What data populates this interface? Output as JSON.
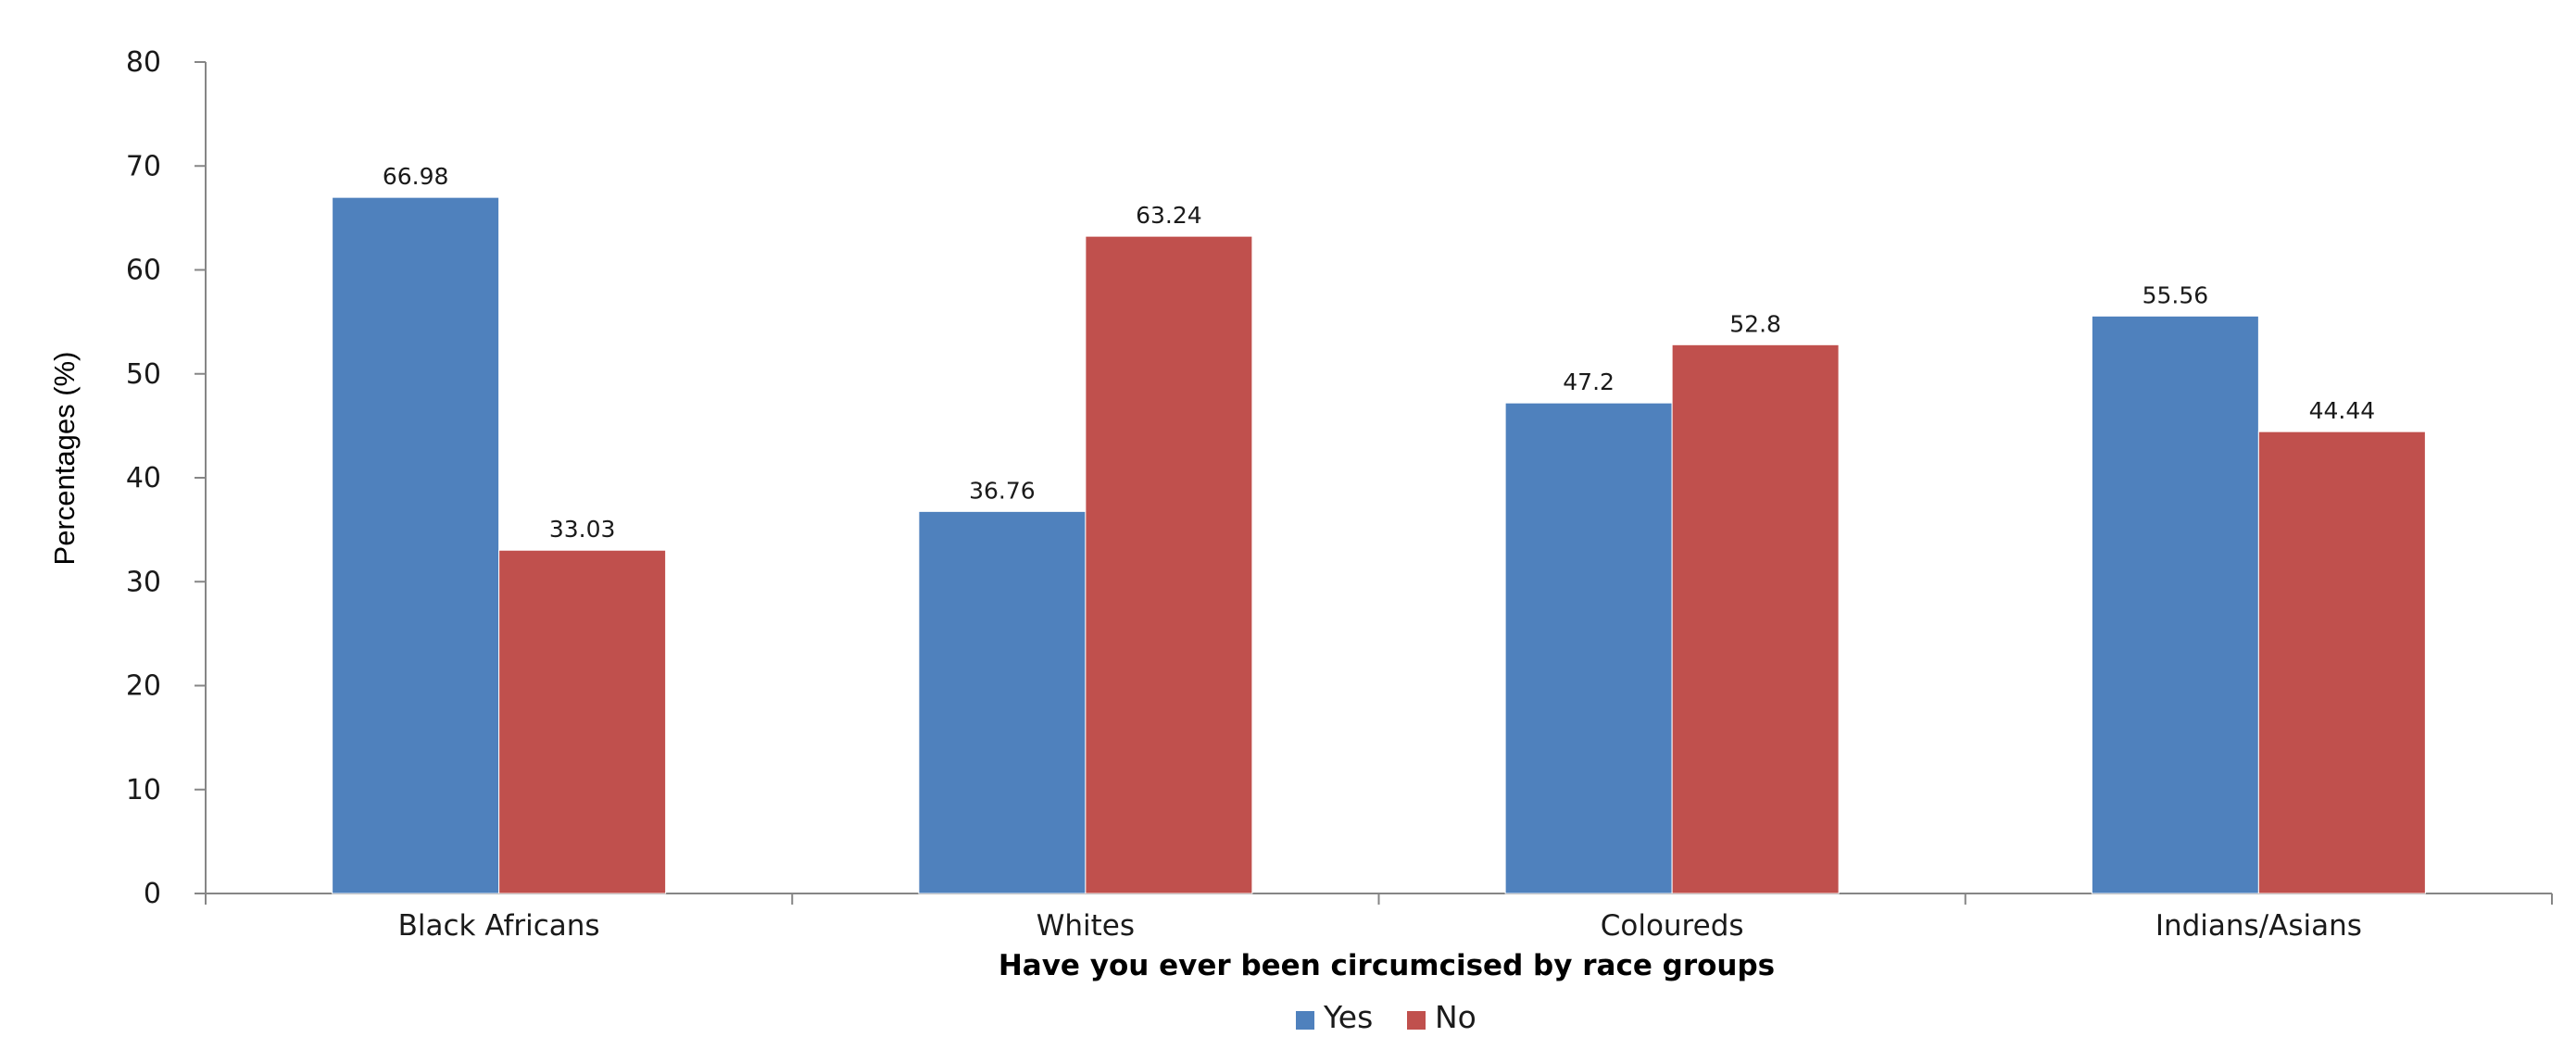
{
  "chart_data": {
    "type": "bar",
    "categories": [
      "Black Africans",
      "Whites",
      "Coloureds",
      "Indians/Asians"
    ],
    "series": [
      {
        "name": "Yes",
        "values": [
          66.98,
          36.76,
          47.2,
          55.56
        ],
        "labels": [
          "66.98",
          "36.76",
          "47.2",
          "55.56"
        ],
        "color": "#4f81bd"
      },
      {
        "name": "No",
        "values": [
          33.03,
          63.24,
          52.8,
          44.44
        ],
        "labels": [
          "33.03",
          "63.24",
          "52.8",
          "44.44"
        ],
        "color": "#c0504d"
      }
    ],
    "xlabel": "Have you ever been circumcised by race groups",
    "ylabel": "Percentages (%)",
    "ylim": [
      0,
      80
    ],
    "yticks": [
      "0",
      "10",
      "20",
      "30",
      "40",
      "50",
      "60",
      "70",
      "80"
    ],
    "grid": false,
    "legend_position": "bottom-center"
  }
}
